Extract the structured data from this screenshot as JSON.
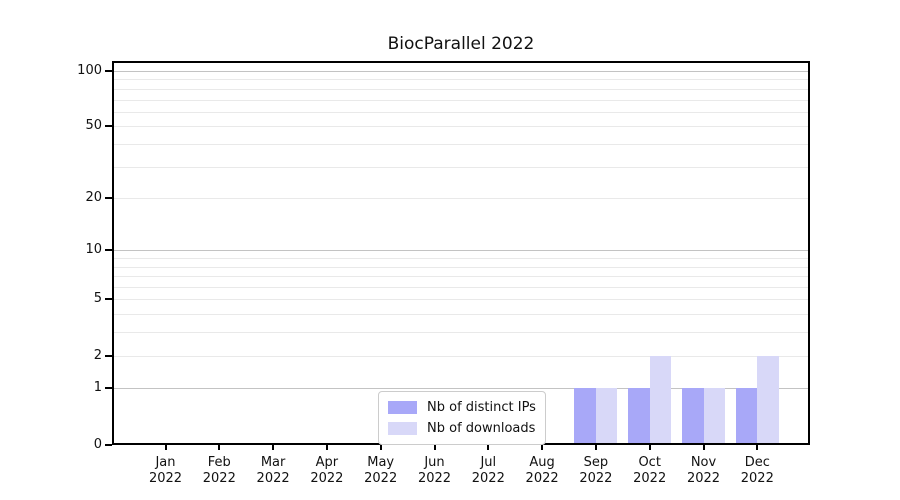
{
  "figure": {
    "background": "#ffffff"
  },
  "chart_data": {
    "type": "bar",
    "title": "BiocParallel 2022",
    "x": [
      {
        "month": "Jan",
        "year": "2022"
      },
      {
        "month": "Feb",
        "year": "2022"
      },
      {
        "month": "Mar",
        "year": "2022"
      },
      {
        "month": "Apr",
        "year": "2022"
      },
      {
        "month": "May",
        "year": "2022"
      },
      {
        "month": "Jun",
        "year": "2022"
      },
      {
        "month": "Jul",
        "year": "2022"
      },
      {
        "month": "Aug",
        "year": "2022"
      },
      {
        "month": "Sep",
        "year": "2022"
      },
      {
        "month": "Oct",
        "year": "2022"
      },
      {
        "month": "Nov",
        "year": "2022"
      },
      {
        "month": "Dec",
        "year": "2022"
      }
    ],
    "series": [
      {
        "name": "Nb of distinct IPs",
        "color": "#a8a8f8",
        "values": [
          0,
          0,
          0,
          0,
          0,
          0,
          0,
          0,
          1,
          1,
          1,
          1
        ]
      },
      {
        "name": "Nb of downloads",
        "color": "#d8d8f8",
        "values": [
          0,
          0,
          0,
          0,
          0,
          0,
          0,
          0,
          1,
          2,
          1,
          2
        ]
      }
    ],
    "y_scale": "log1p",
    "ylim": [
      0,
      113
    ],
    "y_ticks": [
      0,
      1,
      2,
      5,
      10,
      20,
      50,
      100
    ],
    "y_major_gridlines": [
      1,
      10,
      100
    ],
    "y_minor_gridlines": [
      2,
      3,
      4,
      5,
      6,
      7,
      8,
      9,
      20,
      30,
      40,
      50,
      60,
      70,
      80,
      90
    ],
    "grid": "on",
    "legend_position": "lower center",
    "colors": {
      "major_grid": "#c3c3c3",
      "minor_grid": "#e9e9e9",
      "axis": "#000000",
      "text": "#111111"
    }
  }
}
